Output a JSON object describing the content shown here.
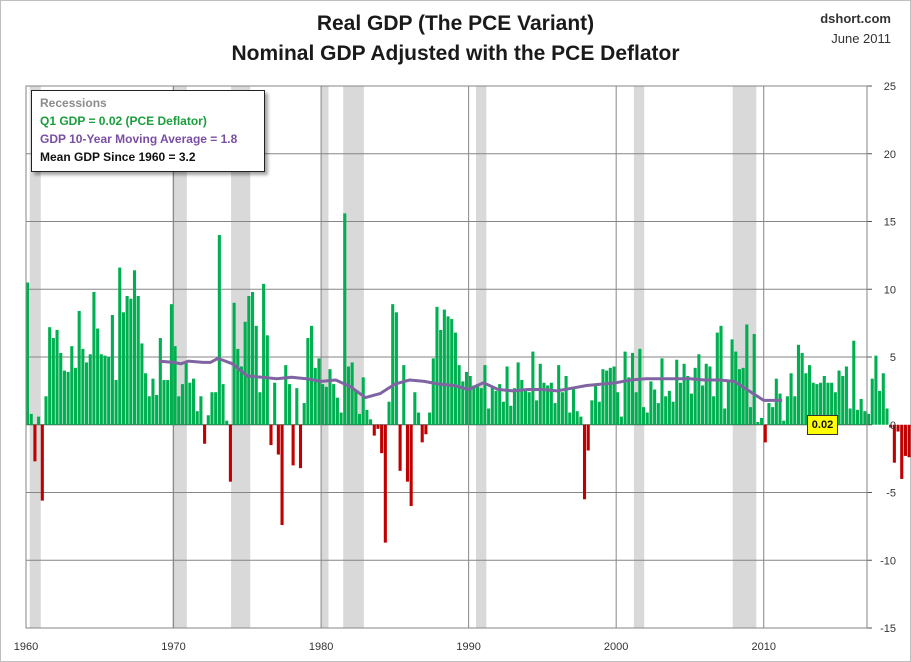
{
  "header": {
    "title_line1": "Real GDP (The PCE Variant)",
    "title_line2": "Nominal GDP Adjusted with the PCE Deflator",
    "source": "dshort.com",
    "date": "June 2011"
  },
  "legend": {
    "recessions": "Recessions",
    "q1": "Q1 GDP = 0.02  (PCE Deflator)",
    "moving_average": "GDP 10-Year Moving Average = 1.8",
    "mean": "Mean GDP  Since 1960 = 3.2"
  },
  "callout": "0.02",
  "colors": {
    "positive": "#00b050",
    "negative": "#c00000",
    "moving_average": "#8064a2",
    "recession": "#d9d9d9",
    "grid": "#868686"
  },
  "chart_data": {
    "type": "bar",
    "title": "Real GDP (The PCE Variant) / Nominal GDP Adjusted with the PCE Deflator",
    "xlabel": "",
    "ylabel": "",
    "xlim": [
      1960,
      2017
    ],
    "ylim": [
      -15,
      25
    ],
    "x_ticks": [
      "1960",
      "1970",
      "1980",
      "1990",
      "2000",
      "2010"
    ],
    "y_ticks": [
      "25",
      "20",
      "15",
      "10",
      "5",
      "0",
      "-5",
      "-10",
      "-15"
    ],
    "y_axis_side": "right",
    "grid": "vertical at decades, horizontal at 5-unit steps",
    "legend_position": "top-left",
    "recessions": [
      [
        1960.25,
        1961.0
      ],
      [
        1969.9,
        1970.9
      ],
      [
        1973.9,
        1975.2
      ],
      [
        1980.0,
        1980.5
      ],
      [
        1981.5,
        1982.9
      ],
      [
        1990.5,
        1991.2
      ],
      [
        2001.2,
        2001.9
      ],
      [
        2007.9,
        2009.5
      ]
    ],
    "series": [
      {
        "name": "Q1 GDP = 0.02  (PCE Deflator)",
        "type": "bar",
        "x_start": 1960.0,
        "step": 0.25,
        "values": [
          10.5,
          0.8,
          -2.7,
          0.6,
          -5.6,
          2.1,
          7.2,
          6.4,
          7.0,
          5.3,
          4.0,
          3.9,
          5.8,
          4.2,
          8.4,
          5.6,
          4.6,
          5.2,
          9.8,
          7.1,
          5.2,
          5.1,
          5.0,
          8.1,
          3.3,
          11.6,
          8.3,
          9.5,
          9.3,
          11.4,
          9.5,
          6.0,
          3.8,
          2.1,
          3.4,
          2.2,
          6.4,
          3.3,
          3.3,
          8.9,
          5.8,
          2.1,
          3.0,
          4.7,
          3.1,
          3.4,
          1.0,
          2.1,
          -1.4,
          0.7,
          2.4,
          2.4,
          14.0,
          3.0,
          0.3,
          -4.2,
          9.0,
          5.6,
          4.3,
          7.6,
          9.5,
          9.8,
          7.3,
          2.4,
          10.4,
          6.6,
          -1.5,
          3.1,
          -2.2,
          -7.4,
          4.4,
          3.0,
          -3.0,
          2.7,
          -3.2,
          1.6,
          6.4,
          7.3,
          4.2,
          4.9,
          3.0,
          2.8,
          4.1,
          3.0,
          2.0,
          0.9,
          15.6,
          4.3,
          4.6,
          2.5,
          0.8,
          3.5,
          1.1,
          0.4,
          -0.8,
          -0.3,
          -2.1,
          -8.7,
          1.7,
          8.9,
          8.3,
          -3.4,
          4.4,
          -4.2,
          -6.0,
          2.4,
          0.9,
          -1.3,
          -0.7,
          0.9,
          4.9,
          8.7,
          7.0,
          8.5,
          8.0,
          7.8,
          6.8,
          4.4,
          3.2,
          3.9,
          3.6,
          2.9,
          3.0,
          2.7,
          4.4,
          1.2,
          2.8,
          2.5,
          3.0,
          1.7,
          4.3,
          1.4,
          2.7,
          4.6,
          3.3,
          2.5,
          2.4,
          5.4,
          1.8,
          4.5,
          3.1,
          2.9,
          3.1,
          1.6,
          4.4,
          2.4,
          3.6,
          0.9,
          2.7,
          1.0,
          0.6,
          -5.5,
          -1.9,
          1.8,
          2.9,
          1.7,
          4.1,
          4.0,
          4.2,
          4.3,
          2.4,
          0.6,
          5.4,
          3.5,
          5.3,
          2.4,
          5.6,
          1.3,
          0.9,
          3.2,
          2.6,
          1.6,
          4.9,
          2.1,
          2.5,
          1.7,
          4.8,
          3.1,
          4.5,
          3.6,
          2.3,
          4.2,
          5.2,
          2.9,
          4.5,
          4.3,
          2.1,
          6.8,
          7.3,
          1.2,
          3.3,
          6.3,
          5.4,
          4.1,
          4.2,
          7.4,
          1.3,
          6.7,
          0.2,
          0.5,
          -1.3,
          1.6,
          1.3,
          3.4,
          2.3,
          0.3,
          2.1,
          3.8,
          2.1,
          5.9,
          5.3,
          3.8,
          4.4,
          3.1,
          3.0,
          3.1,
          3.6,
          3.1,
          3.1,
          2.4,
          4.0,
          3.6,
          4.3,
          1.2,
          6.2,
          1.1,
          1.9,
          1.0,
          0.8,
          3.4,
          5.1,
          2.5,
          3.8,
          1.2,
          -0.2,
          -2.8,
          -0.5,
          -4.0,
          -2.3,
          -2.4,
          -2.4,
          1.6,
          4.0,
          3.5,
          2.1,
          2.6,
          3.7,
          3.8,
          0.02
        ]
      },
      {
        "name": "GDP 10-Year Moving Average = 1.8",
        "type": "line",
        "points": [
          [
            1969.0,
            4.7
          ],
          [
            1970.0,
            4.6
          ],
          [
            1970.5,
            4.5
          ],
          [
            1971.0,
            4.7
          ],
          [
            1972.0,
            4.6
          ],
          [
            1972.5,
            4.6
          ],
          [
            1973.0,
            4.9
          ],
          [
            1974.0,
            4.5
          ],
          [
            1975.0,
            3.6
          ],
          [
            1976.0,
            3.5
          ],
          [
            1977.0,
            3.4
          ],
          [
            1978.0,
            3.5
          ],
          [
            1979.0,
            3.4
          ],
          [
            1980.0,
            3.2
          ],
          [
            1981.0,
            3.3
          ],
          [
            1982.0,
            2.8
          ],
          [
            1983.0,
            2.0
          ],
          [
            1984.0,
            2.3
          ],
          [
            1985.0,
            3.0
          ],
          [
            1986.0,
            3.3
          ],
          [
            1987.0,
            3.2
          ],
          [
            1988.0,
            3.0
          ],
          [
            1989.0,
            2.9
          ],
          [
            1990.0,
            2.6
          ],
          [
            1991.0,
            3.1
          ],
          [
            1992.0,
            2.6
          ],
          [
            1993.0,
            2.5
          ],
          [
            1994.0,
            2.6
          ],
          [
            1995.0,
            2.6
          ],
          [
            1996.0,
            2.5
          ],
          [
            1997.0,
            2.7
          ],
          [
            1998.0,
            2.9
          ],
          [
            1999.0,
            3.0
          ],
          [
            2000.0,
            3.1
          ],
          [
            2001.0,
            3.3
          ],
          [
            2002.0,
            3.4
          ],
          [
            2003.0,
            3.4
          ],
          [
            2004.0,
            3.4
          ],
          [
            2005.0,
            3.4
          ],
          [
            2006.0,
            3.3
          ],
          [
            2007.0,
            3.3
          ],
          [
            2008.0,
            3.2
          ],
          [
            2009.0,
            2.5
          ],
          [
            2010.0,
            1.8
          ],
          [
            2011.25,
            1.8
          ]
        ]
      },
      {
        "name": "Mean GDP  Since 1960 = 3.2",
        "type": "mean",
        "value": 3.2
      }
    ]
  }
}
